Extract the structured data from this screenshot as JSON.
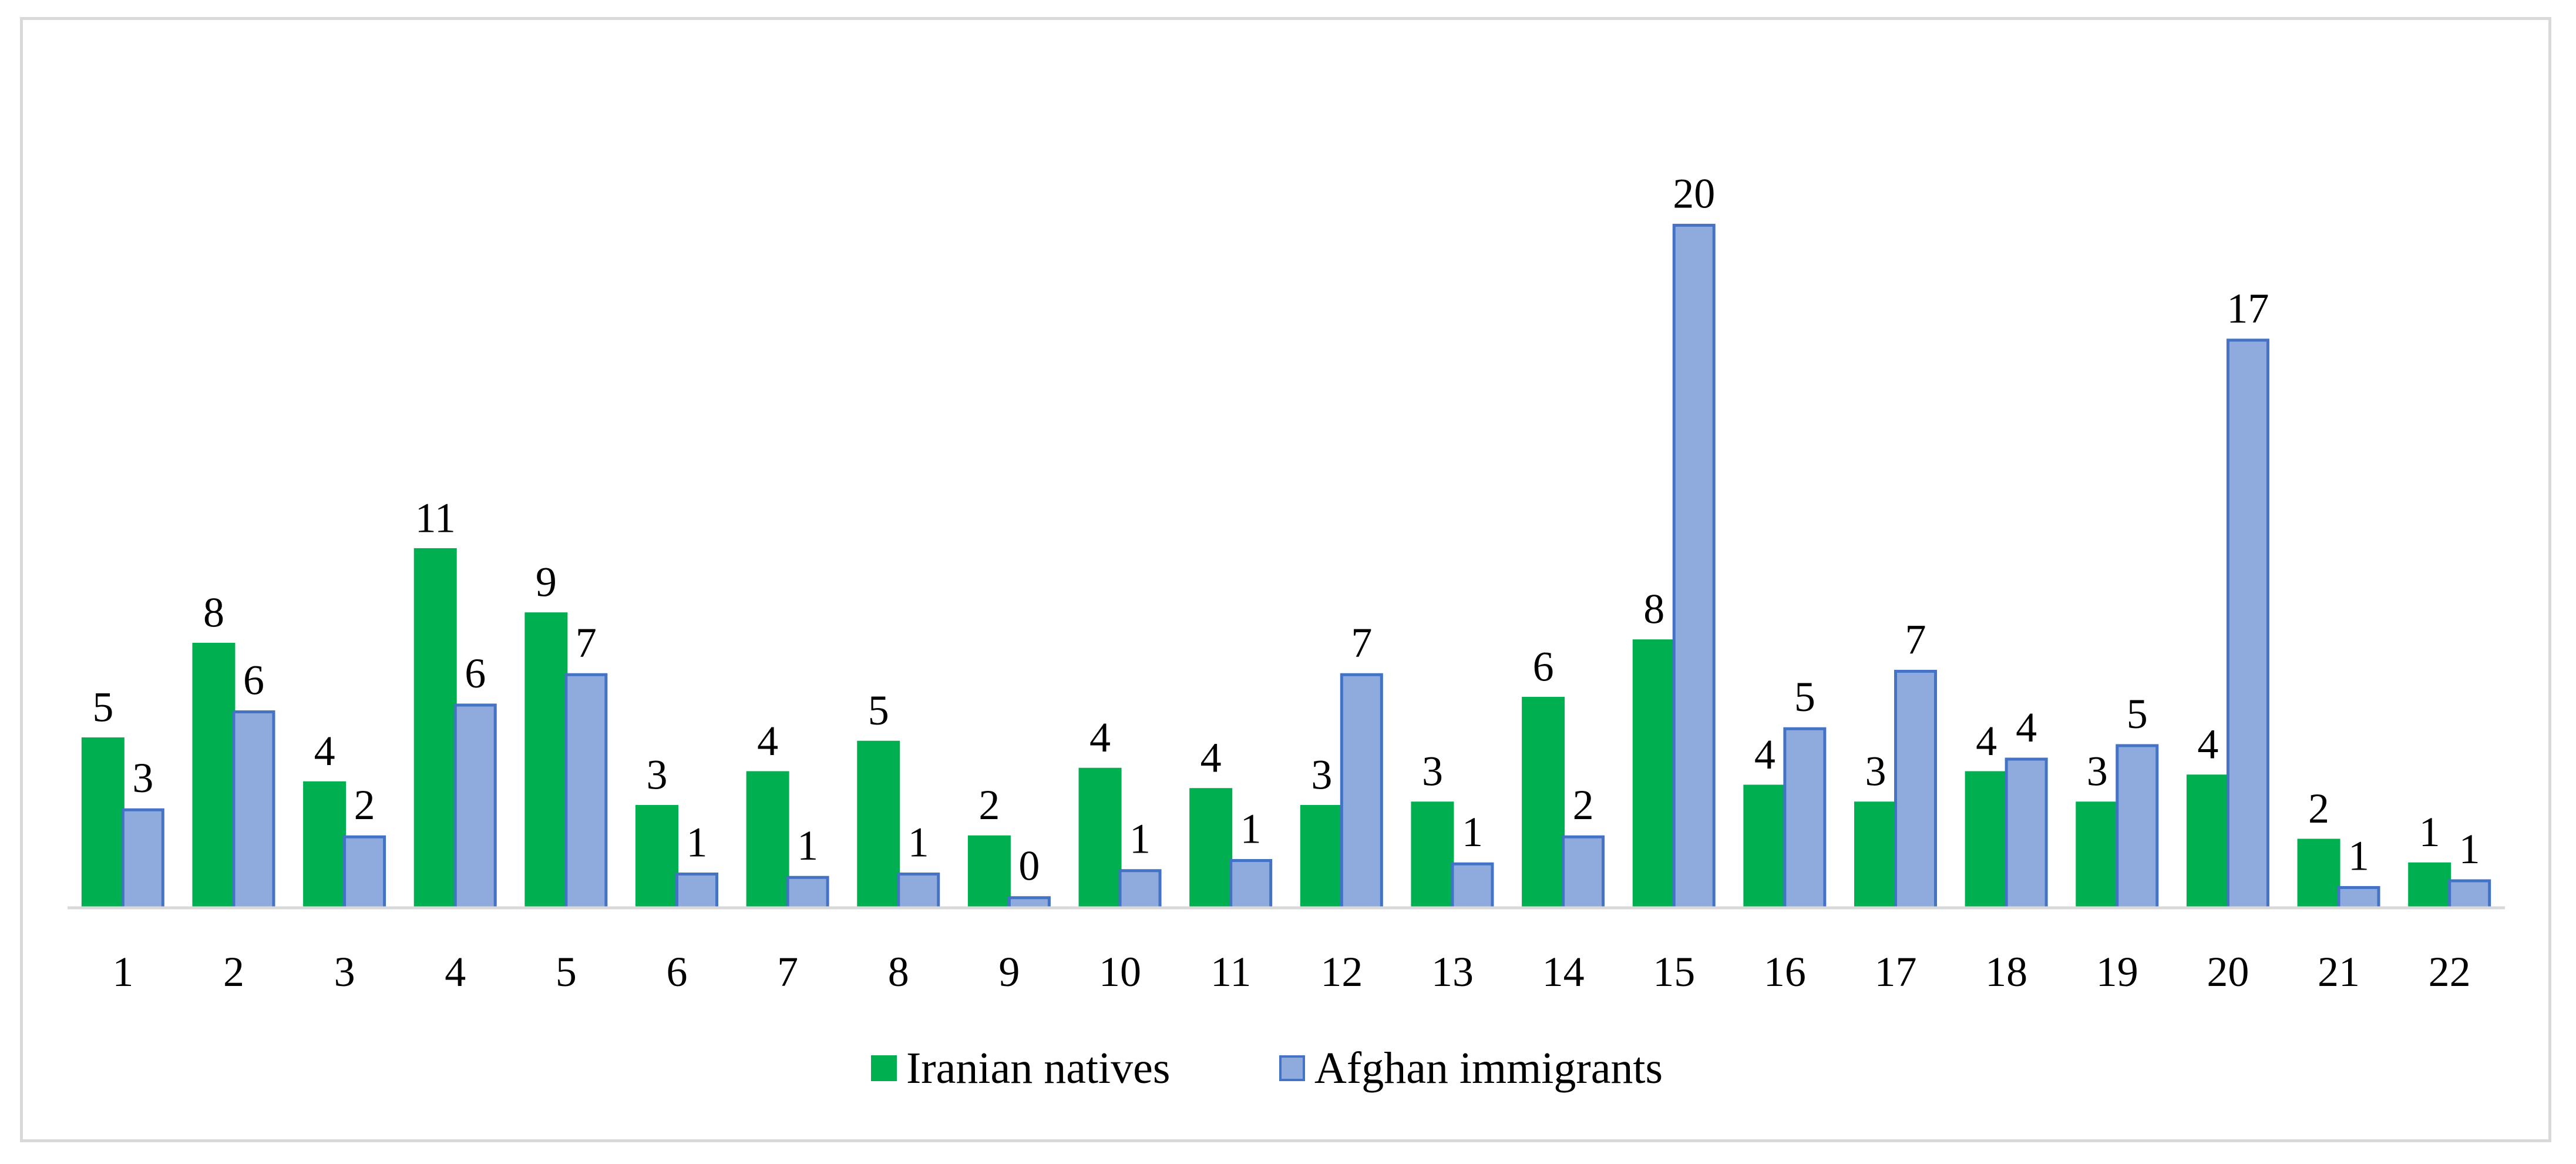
{
  "chart_data": {
    "type": "bar",
    "title": "",
    "xlabel": "",
    "ylabel": "",
    "ylim": [
      0,
      21
    ],
    "grid": false,
    "legend_position": "bottom",
    "categories": [
      "1",
      "2",
      "3",
      "4",
      "5",
      "6",
      "7",
      "8",
      "9",
      "10",
      "11",
      "12",
      "13",
      "14",
      "15",
      "16",
      "17",
      "18",
      "19",
      "20",
      "21",
      "22"
    ],
    "series": [
      {
        "name": "Iranian natives",
        "color": "#00b050",
        "edge_color": "#00b050",
        "values": [
          5.0,
          7.8,
          3.7,
          10.6,
          8.7,
          3.0,
          4.0,
          4.9,
          2.1,
          4.1,
          3.5,
          3.0,
          3.1,
          6.2,
          7.9,
          3.6,
          3.1,
          4.0,
          3.1,
          3.9,
          2.0,
          1.3
        ],
        "labels": [
          "5",
          "8",
          "4",
          "11",
          "9",
          "3",
          "4",
          "5",
          "2",
          "4",
          "4",
          "3",
          "3",
          "6",
          "8",
          "4",
          "3",
          "4",
          "3",
          "4",
          "2",
          "1"
        ]
      },
      {
        "name": "Afghan immigrants",
        "color": "#8faadc",
        "edge_color": "#4472c4",
        "values": [
          2.9,
          5.8,
          2.1,
          6.0,
          6.9,
          1.0,
          0.9,
          1.0,
          0.3,
          1.1,
          1.4,
          6.9,
          1.3,
          2.1,
          20.2,
          5.3,
          7.0,
          4.4,
          4.8,
          16.8,
          0.6,
          0.8
        ],
        "labels": [
          "3",
          "6",
          "2",
          "6",
          "7",
          "1",
          "1",
          "1",
          "0",
          "1",
          "1",
          "7",
          "1",
          "2",
          "20",
          "5",
          "7",
          "4",
          "5",
          "17",
          "1",
          "1"
        ]
      }
    ]
  }
}
